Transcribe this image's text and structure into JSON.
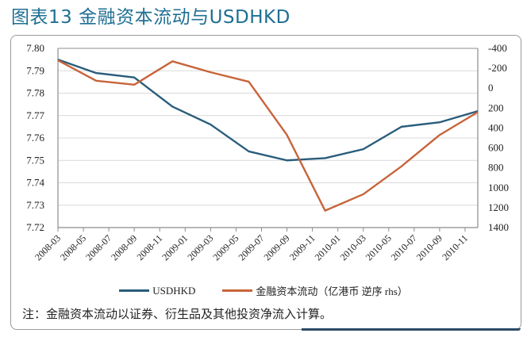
{
  "header": {
    "title": "图表13  金融资本流动与USDHKD"
  },
  "colors": {
    "title": "#1f6f93",
    "usdhkd": "#2a5d7c",
    "capital_flow": "#c8643a",
    "gridline": "#d9d9d9",
    "axis": "#8c8c8c"
  },
  "legend": {
    "items": [
      {
        "label": "USDHKD",
        "color": "#2a5d7c"
      },
      {
        "label": "金融资本流动（亿港币 逆序 rhs）",
        "color": "#c8643a"
      }
    ]
  },
  "note": "注：金融资本流动以证券、衍生品及其他投资净流入计算。",
  "axes": {
    "left_ticks": [
      "7.80",
      "7.79",
      "7.78",
      "7.77",
      "7.76",
      "7.75",
      "7.74",
      "7.73",
      "7.72"
    ],
    "right_ticks": [
      "-400",
      "-200",
      "0",
      "200",
      "400",
      "600",
      "800",
      "1000",
      "1200",
      "1400"
    ],
    "x_ticks": [
      "2008-03",
      "2008-05",
      "2008-07",
      "2008-09",
      "2008-11",
      "2009-01",
      "2009-03",
      "2009-05",
      "2009-07",
      "2009-09",
      "2009-11",
      "2010-01",
      "2010-03",
      "2010-05",
      "2010-07",
      "2010-09",
      "2010-11"
    ]
  },
  "chart_data": {
    "type": "line",
    "title": "图表13  金融资本流动与USDHKD",
    "xlabel": "",
    "ylabel": "USDHKD",
    "ylabel_right": "金融资本流动（亿港币 逆序 rhs）",
    "ylim": [
      7.72,
      7.8
    ],
    "ylim_right": [
      -400,
      1400
    ],
    "right_axis_inverted": true,
    "grid": true,
    "legend_position": "bottom",
    "x": [
      "2008-03",
      "2008-06",
      "2008-09",
      "2008-12",
      "2009-03",
      "2009-06",
      "2009-09",
      "2009-12",
      "2010-03",
      "2010-06",
      "2010-09",
      "2010-12"
    ],
    "series": [
      {
        "name": "USDHKD",
        "axis": "left",
        "values": [
          7.795,
          7.789,
          7.787,
          7.774,
          7.766,
          7.754,
          7.75,
          7.751,
          7.755,
          7.765,
          7.767,
          7.772
        ]
      },
      {
        "name": "金融资本流动（亿港币 逆序 rhs）",
        "axis": "right",
        "values": [
          -280,
          -75,
          -35,
          -270,
          -160,
          -65,
          470,
          1230,
          1065,
          785,
          470,
          240
        ]
      }
    ]
  }
}
